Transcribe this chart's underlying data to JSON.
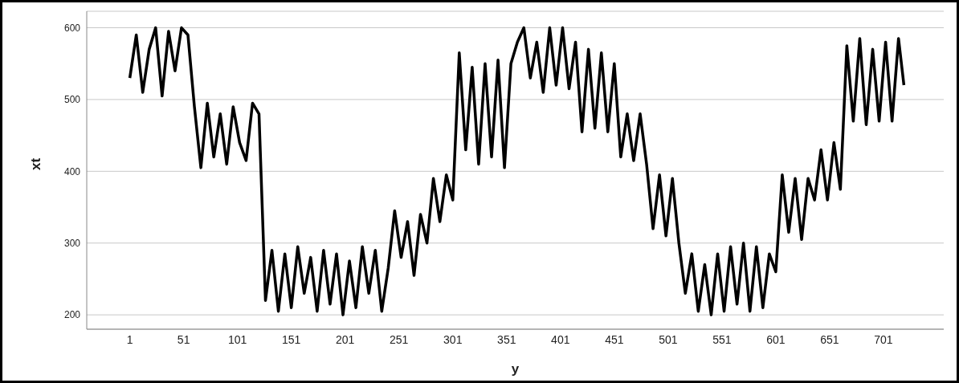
{
  "chart_data": {
    "type": "line",
    "xlabel": "y",
    "ylabel": "xt",
    "xlim": [
      -39,
      757
    ],
    "xticks": [
      1,
      51,
      101,
      151,
      201,
      251,
      301,
      351,
      401,
      451,
      501,
      551,
      601,
      651,
      701
    ],
    "ylim": [
      180,
      623
    ],
    "yticks": [
      200,
      300,
      400,
      500,
      600
    ],
    "grid": "y",
    "x": [
      1,
      7,
      13,
      19,
      25,
      31,
      37,
      43,
      49,
      55,
      61,
      67,
      73,
      79,
      85,
      91,
      97,
      103,
      109,
      115,
      121,
      127,
      133,
      139,
      145,
      151,
      157,
      163,
      169,
      175,
      181,
      187,
      193,
      199,
      205,
      211,
      217,
      223,
      229,
      235,
      241,
      247,
      253,
      259,
      265,
      271,
      277,
      283,
      289,
      295,
      301,
      307,
      313,
      319,
      325,
      331,
      337,
      343,
      349,
      355,
      361,
      367,
      373,
      379,
      385,
      391,
      397,
      403,
      409,
      415,
      421,
      427,
      433,
      439,
      445,
      451,
      457,
      463,
      469,
      475,
      481,
      487,
      493,
      499,
      505,
      511,
      517,
      523,
      529,
      535,
      541,
      547,
      553,
      559,
      565,
      571,
      577,
      583,
      589,
      595,
      601,
      607,
      613,
      619,
      625,
      631,
      637,
      643,
      649,
      655,
      661,
      667,
      673,
      679,
      685,
      691,
      697,
      703,
      709,
      715,
      720
    ],
    "series": [
      {
        "color": "#000000",
        "values": [
          530,
          590,
          510,
          570,
          600,
          505,
          595,
          540,
          600,
          590,
          490,
          405,
          495,
          420,
          480,
          410,
          490,
          440,
          415,
          495,
          480,
          220,
          290,
          205,
          285,
          210,
          295,
          230,
          280,
          205,
          290,
          215,
          285,
          200,
          275,
          210,
          295,
          230,
          290,
          205,
          265,
          345,
          280,
          330,
          255,
          340,
          300,
          390,
          330,
          395,
          360,
          565,
          430,
          545,
          410,
          550,
          420,
          555,
          405,
          550,
          580,
          600,
          530,
          580,
          510,
          600,
          520,
          600,
          515,
          580,
          455,
          570,
          460,
          565,
          455,
          550,
          420,
          480,
          415,
          480,
          410,
          320,
          395,
          310,
          390,
          300,
          230,
          285,
          205,
          270,
          200,
          285,
          205,
          295,
          215,
          300,
          205,
          295,
          210,
          285,
          260,
          395,
          315,
          390,
          305,
          390,
          360,
          430,
          360,
          440,
          375,
          575,
          470,
          585,
          465,
          570,
          470,
          580,
          470,
          585,
          520
        ]
      }
    ]
  }
}
